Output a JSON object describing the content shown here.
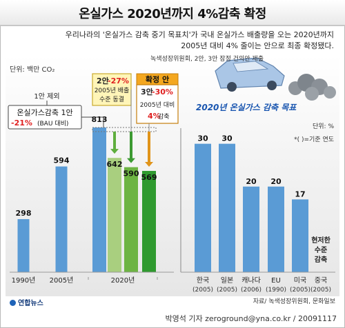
{
  "title": "온실가스 2020년까지 4%감축 확정",
  "intro": {
    "line1": "우리나라의 '온실가스 감축 중기 목표치'가 국내 온실가스 배출량을 오는 2020년까지",
    "line2": "2005년 대비 4% 줄이는 안으로 최종 확정됐다."
  },
  "proposal_note": "녹색성장위원회, 2안, 3안 잠정 건의안 제출",
  "unit_left": "단위: 백만 CO₂",
  "plan1": {
    "header": "1안 제외",
    "line1": "온실가스감축 1안",
    "line2_red": "-21%",
    "line2_rest": "(BAU 대비)"
  },
  "plan2": {
    "line1_prefix": "2안 ",
    "line1_red": "-27%",
    "line2": "2005년 배출",
    "line3": "수준 동결"
  },
  "plan3": {
    "header": "확정 안",
    "line1_prefix": "3안 ",
    "line1_red": "-30%",
    "line2": "2005년 대비",
    "line3_red": "4%",
    "line3_rest": " 감축"
  },
  "right_title": "2020년 온실가스 감축 목표",
  "unit_right": "단위: %",
  "base_note": "*( )=기준 연도",
  "no_target_text": [
    "현저한",
    "수준",
    "감축"
  ],
  "source": "자료/ 녹색성장위원회, 문화일보",
  "footer_logo": "연합뉴스",
  "credit": "박영석 기자 zeroground@yna.co.kr / 20091117",
  "colors": {
    "bar_blue": "#5a9bd5",
    "bar_green_light": "#a9cf7f",
    "bar_green_mid": "#6db443",
    "bar_green_dark": "#2f9a2f",
    "accent_red": "#e02020",
    "title_blue": "#1a56b0"
  },
  "chart_data": [
    {
      "type": "bar",
      "title": "",
      "ylabel": "단위: 백만 CO₂",
      "bars": [
        {
          "label": "298",
          "value": 298,
          "group": "1990년"
        },
        {
          "label": "594",
          "value": 594,
          "group": "2005년"
        },
        {
          "label": "813",
          "value": 813,
          "group": "2020년"
        },
        {
          "label": "642",
          "value": 642,
          "group": "2020년"
        },
        {
          "label": "590",
          "value": 590,
          "group": "2020년"
        },
        {
          "label": "569",
          "value": 569,
          "group": "2020년"
        }
      ],
      "x_groups": [
        "1990년",
        "2005년",
        "2020년"
      ],
      "ylim": [
        0,
        900
      ]
    },
    {
      "type": "bar",
      "title": "2020년 온실가스 감축 목표",
      "ylabel": "단위: %",
      "categories": [
        "한국",
        "일본",
        "캐나다",
        "EU",
        "미국",
        "중국"
      ],
      "base_years": [
        "(2005)",
        "(2005)",
        "(2006)",
        "(1990)",
        "(2005)",
        "(2005)"
      ],
      "values": [
        30,
        30,
        20,
        20,
        17,
        null
      ],
      "ylim": [
        0,
        33
      ]
    }
  ]
}
